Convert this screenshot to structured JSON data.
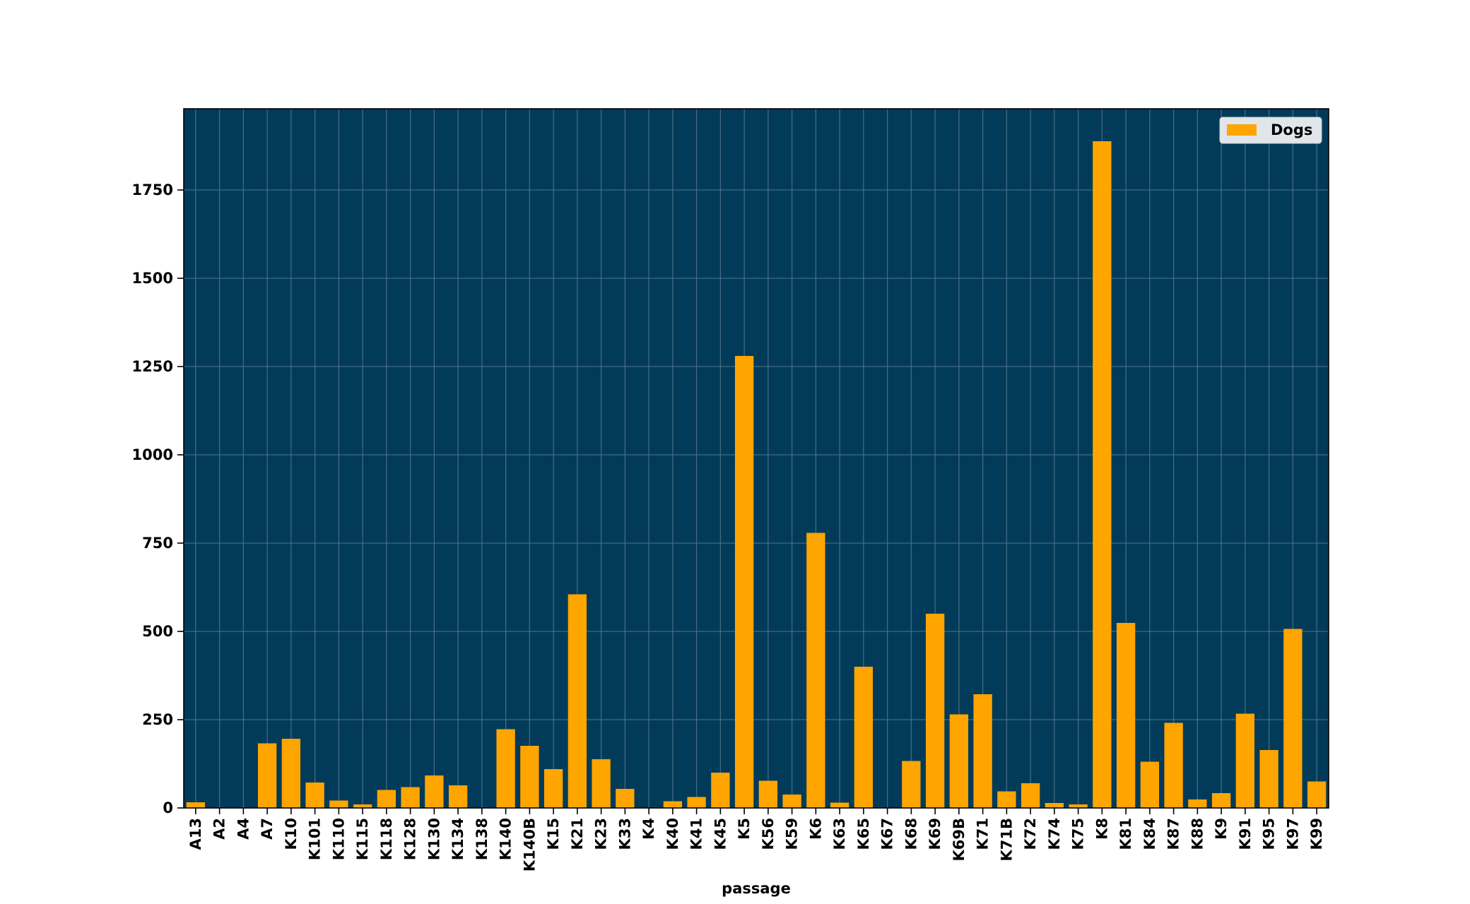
{
  "chart_data": {
    "type": "bar",
    "title": "",
    "xlabel": "passage",
    "ylabel": "",
    "ylim": [
      0,
      1980
    ],
    "yticks": [
      0,
      250,
      500,
      750,
      1000,
      1250,
      1500,
      1750
    ],
    "grid": true,
    "legend_position": "top-right",
    "categories": [
      "A13",
      "A2",
      "A4",
      "A7",
      "K10",
      "K101",
      "K110",
      "K115",
      "K118",
      "K128",
      "K130",
      "K134",
      "K138",
      "K140",
      "K140B",
      "K15",
      "K21",
      "K23",
      "K33",
      "K4",
      "K40",
      "K41",
      "K45",
      "K5",
      "K56",
      "K59",
      "K6",
      "K63",
      "K65",
      "K67",
      "K68",
      "K69",
      "K69B",
      "K71",
      "K71B",
      "K72",
      "K74",
      "K75",
      "K8",
      "K81",
      "K84",
      "K87",
      "K88",
      "K9",
      "K91",
      "K95",
      "K97",
      "K99"
    ],
    "series": [
      {
        "name": "Dogs",
        "values": [
          16,
          0,
          0,
          183,
          196,
          72,
          21,
          10,
          51,
          59,
          92,
          64,
          0,
          223,
          176,
          110,
          605,
          138,
          54,
          0,
          19,
          31,
          100,
          1280,
          77,
          38,
          779,
          15,
          400,
          0,
          133,
          550,
          265,
          322,
          47,
          70,
          14,
          10,
          1888,
          524,
          131,
          241,
          24,
          42,
          267,
          164,
          507,
          75
        ]
      }
    ]
  },
  "colors": {
    "plot_background": "#023B59",
    "bar": "#FFA500",
    "grid": "#5A7A8E",
    "legend_background": "#E0E6EA"
  }
}
